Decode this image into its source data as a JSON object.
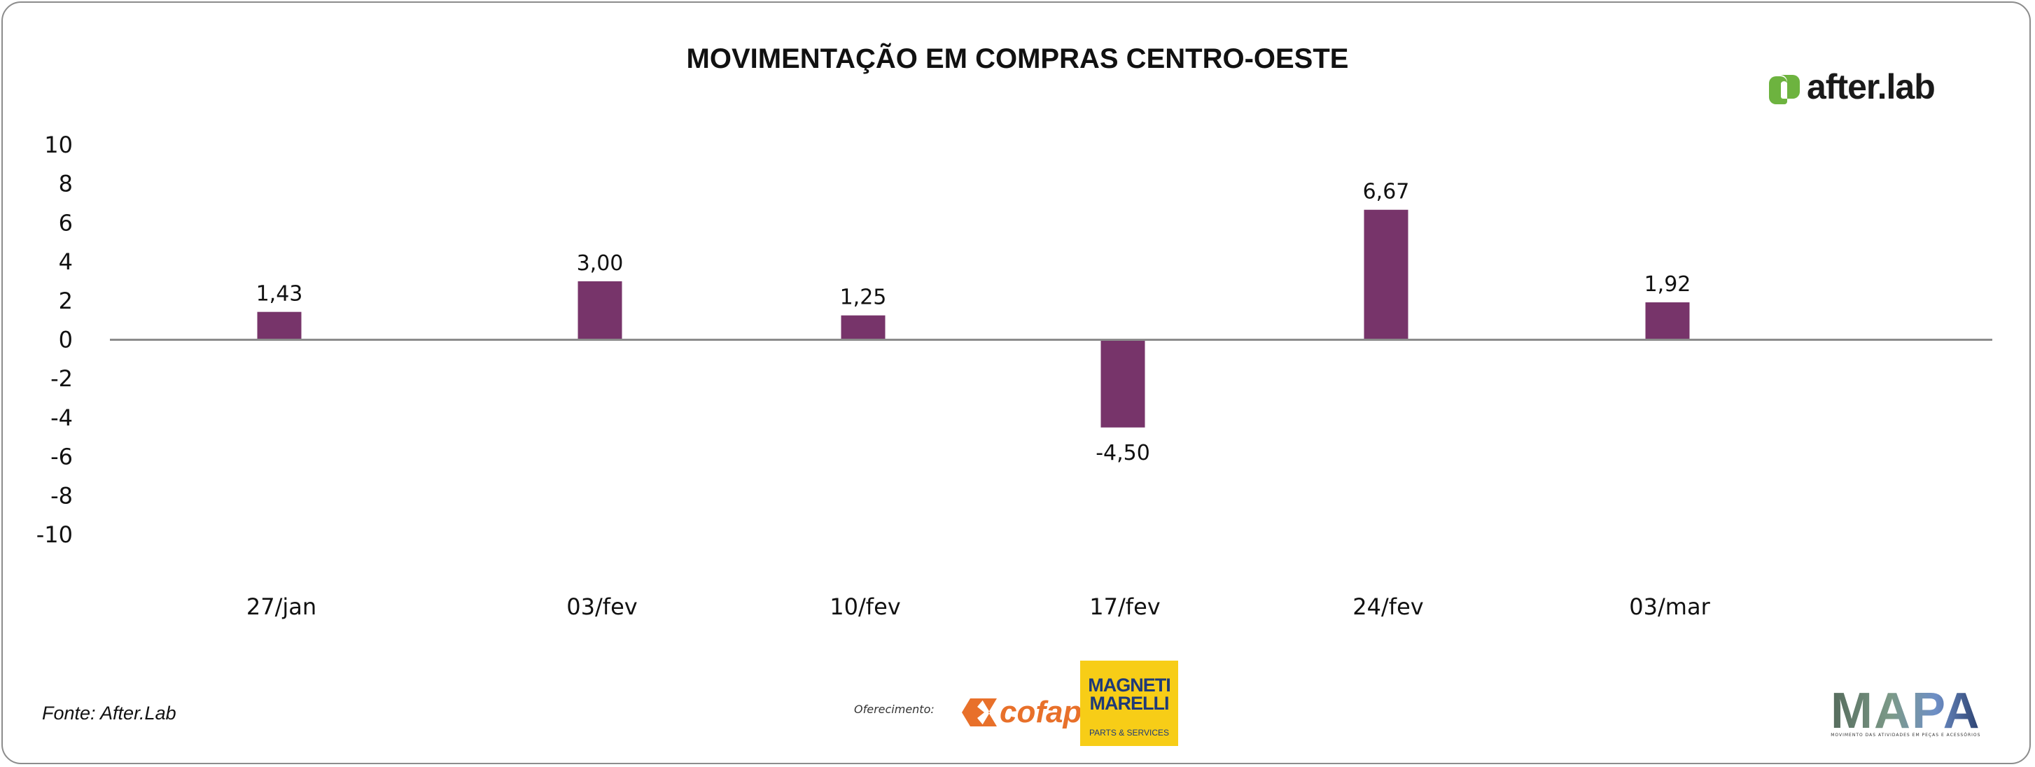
{
  "chart_data": {
    "type": "bar",
    "title": "MOVIMENTAÇÃO EM COMPRAS CENTRO-OESTE",
    "categories": [
      "27/jan",
      "03/fev",
      "10/fev",
      "17/fev",
      "24/fev",
      "03/mar"
    ],
    "values": [
      1.43,
      3.0,
      1.25,
      -4.5,
      6.67,
      1.92
    ],
    "data_labels": [
      "1,43",
      "3,00",
      "1,25",
      "-4,50",
      "6,67",
      "1,92"
    ],
    "ylim": [
      -10,
      10
    ],
    "yticks": [
      10,
      8,
      6,
      4,
      2,
      0,
      -2,
      -4,
      -6,
      -8,
      -10
    ],
    "ytick_labels": [
      "10",
      "8",
      "6",
      "4",
      "2",
      "0",
      "-2",
      "-4",
      "-6",
      "-8",
      "-10"
    ],
    "xlabel": "",
    "ylabel": "",
    "grid": false,
    "legend": "none",
    "bar_color": "#77346a",
    "axis_color": "#8c8c8c"
  },
  "source": "Fonte: After.Lab",
  "sponsors": {
    "label": "Oferecimento:",
    "cofap": "cofap",
    "marelli_line1": "MAGNETI",
    "marelli_line2": "MARELLI",
    "marelli_line3": "PARTS & SERVICES"
  },
  "brand": {
    "afterlab": "after.lab",
    "afterlab_color": "#6db33f",
    "mapa": "MAPA",
    "mapa_tagline": "MOVIMENTO DAS ATIVIDADES EM PEÇAS E ACESSÓRIOS"
  }
}
